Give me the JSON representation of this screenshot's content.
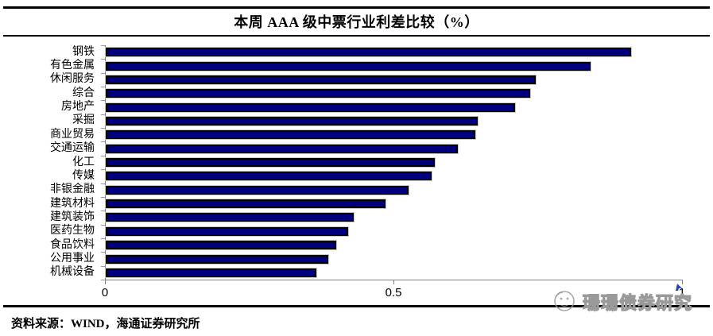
{
  "title": "本周 AAA 级中票行业利差比较（%）",
  "source_note": "资料来源：WIND，海通证券研究所",
  "watermark": {
    "text": "珊珊债券研究"
  },
  "colors": {
    "bar_fill": "#00007E",
    "bar_border": "#000000",
    "axis": "#808080",
    "rule_lines": "#000000",
    "watermark_gray": "#9a9a9a",
    "cursor_blue": "#2b43b5"
  },
  "chart_data": {
    "type": "bar",
    "orientation": "horizontal",
    "title": "本周 AAA 级中票行业利差比较（%）",
    "categories": [
      "钢铁",
      "有色金属",
      "休闲服务",
      "综合",
      "房地产",
      "采掘",
      "商业贸易",
      "交通运输",
      "化工",
      "传媒",
      "非银金融",
      "建筑材料",
      "建筑装饰",
      "医药生物",
      "食品饮料",
      "公用事业",
      "机械设备"
    ],
    "values": [
      0.91,
      0.84,
      0.745,
      0.735,
      0.71,
      0.645,
      0.64,
      0.61,
      0.57,
      0.565,
      0.525,
      0.485,
      0.43,
      0.42,
      0.4,
      0.385,
      0.365
    ],
    "xlabel": "",
    "ylabel": "",
    "xlim": [
      0,
      1
    ],
    "x_ticks": [
      0,
      0.5,
      1
    ],
    "x_tick_labels": [
      "0",
      "0.5",
      "1"
    ],
    "grid": false,
    "legend": null
  }
}
